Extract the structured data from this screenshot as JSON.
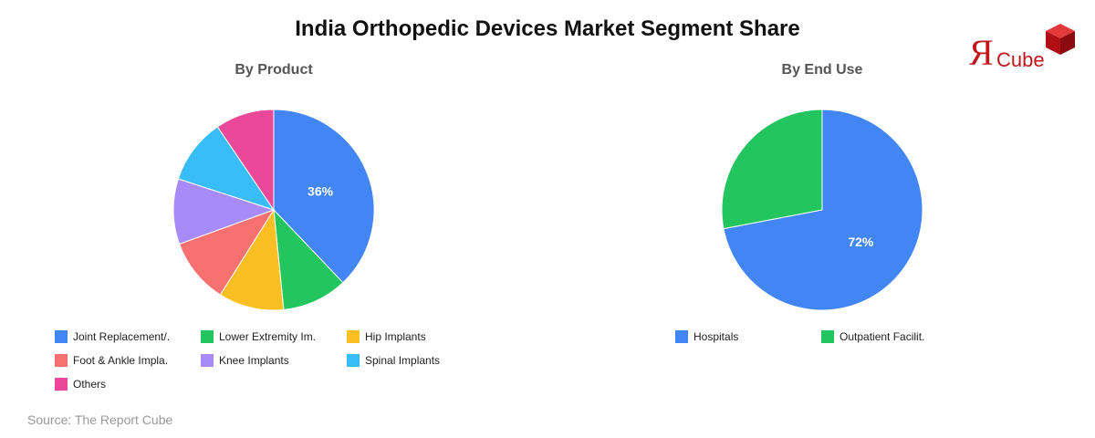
{
  "title": "India Orthopedic Devices Market Segment Share",
  "source": "Source: The Report Cube",
  "logo": {
    "mark": "Я",
    "text": "Cube"
  },
  "chart_data": [
    {
      "type": "pie",
      "title": "By Product",
      "categories": [
        "Joint Replacement/.",
        "Lower Extremity Im.",
        "Hip Implants",
        "Foot & Ankle Impla.",
        "Knee Implants",
        "Spinal Implants",
        "Others"
      ],
      "values": [
        36,
        10,
        10,
        10,
        10,
        10,
        9
      ],
      "colors": [
        "#4285f4",
        "#22c55e",
        "#fbbf24",
        "#f87171",
        "#a78bfa",
        "#38bdf8",
        "#ec4899"
      ],
      "data_labels": [
        "36%",
        "",
        "",
        "",
        "",
        "",
        ""
      ],
      "legend_placement": "bottom"
    },
    {
      "type": "pie",
      "title": "By End Use",
      "categories": [
        "Hospitals",
        "Outpatient Facilit."
      ],
      "values": [
        72,
        28
      ],
      "colors": [
        "#4285f4",
        "#22c55e"
      ],
      "data_labels": [
        "72%",
        ""
      ],
      "legend_placement": "bottom"
    }
  ]
}
